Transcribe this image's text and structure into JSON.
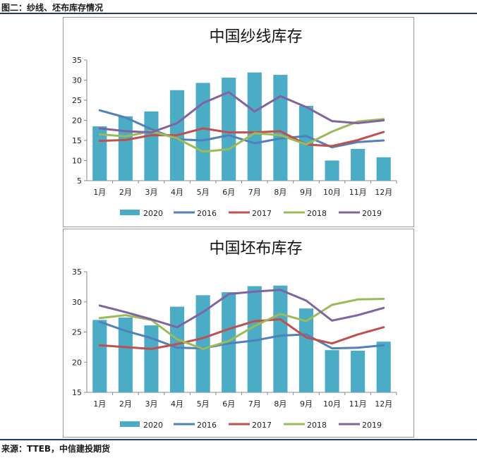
{
  "header": {
    "title": "图二：纱线、坯布库存情况"
  },
  "footer": {
    "source": "来源：TTEB，中信建投期货"
  },
  "colors": {
    "2020": "#4bacc6",
    "2016": "#4f81bd",
    "2017": "#c0504d",
    "2018": "#9bbb59",
    "2019": "#8064a2"
  },
  "chart_data": [
    {
      "type": "bar",
      "title": "中国纱线库存",
      "categories": [
        "1月",
        "2月",
        "3月",
        "4月",
        "5月",
        "6月",
        "7月",
        "8月",
        "9月",
        "10月",
        "11月",
        "12月"
      ],
      "ylim": [
        5,
        35
      ],
      "yticks": [
        5,
        10,
        15,
        20,
        25,
        30,
        35
      ],
      "legend_position": "bottom",
      "series": [
        {
          "name": "2020",
          "kind": "bar",
          "values": [
            18.5,
            21.0,
            22.2,
            27.5,
            29.3,
            30.6,
            31.9,
            31.3,
            23.6,
            10.0,
            12.9,
            10.8
          ]
        },
        {
          "name": "2016",
          "kind": "line",
          "values": [
            22.5,
            20.7,
            17.8,
            15.3,
            15.0,
            16.3,
            14.3,
            15.5,
            16.1,
            13.3,
            14.6,
            15.0
          ]
        },
        {
          "name": "2017",
          "kind": "line",
          "values": [
            14.9,
            15.1,
            16.3,
            16.3,
            18.0,
            17.0,
            17.0,
            17.3,
            14.0,
            13.6,
            15.1,
            17.1
          ]
        },
        {
          "name": "2018",
          "kind": "line",
          "values": [
            16.5,
            16.0,
            17.3,
            15.5,
            12.2,
            12.8,
            16.8,
            16.3,
            14.0,
            17.2,
            19.7,
            20.3
          ]
        },
        {
          "name": "2019",
          "kind": "line",
          "values": [
            18.0,
            17.3,
            17.0,
            19.3,
            24.3,
            27.0,
            22.2,
            26.0,
            23.3,
            19.8,
            19.3,
            20.0
          ]
        }
      ]
    },
    {
      "type": "bar",
      "title": "中国坯布库存",
      "categories": [
        "1月",
        "2月",
        "3月",
        "4月",
        "5月",
        "6月",
        "7月",
        "8月",
        "9月",
        "10月",
        "11月",
        "12月"
      ],
      "ylim": [
        15,
        35
      ],
      "yticks": [
        15,
        20,
        25,
        30,
        35
      ],
      "legend_position": "bottom",
      "series": [
        {
          "name": "2020",
          "kind": "bar",
          "values": [
            27.0,
            27.4,
            26.1,
            29.2,
            31.1,
            31.6,
            32.6,
            32.7,
            28.9,
            22.0,
            21.9,
            23.4
          ]
        },
        {
          "name": "2016",
          "kind": "line",
          "values": [
            26.7,
            25.2,
            24.0,
            22.4,
            22.3,
            23.1,
            23.6,
            24.4,
            24.6,
            22.3,
            22.4,
            22.8
          ]
        },
        {
          "name": "2017",
          "kind": "line",
          "values": [
            22.8,
            22.5,
            22.2,
            23.0,
            24.0,
            25.5,
            26.8,
            27.1,
            24.1,
            23.1,
            24.6,
            25.8
          ]
        },
        {
          "name": "2018",
          "kind": "line",
          "values": [
            27.3,
            27.8,
            27.0,
            23.8,
            22.2,
            23.5,
            26.0,
            28.0,
            26.8,
            29.5,
            30.4,
            30.5
          ]
        },
        {
          "name": "2019",
          "kind": "line",
          "values": [
            29.4,
            28.3,
            27.1,
            25.8,
            28.3,
            31.3,
            31.7,
            32.0,
            30.2,
            26.9,
            27.8,
            29.0
          ]
        }
      ]
    }
  ]
}
